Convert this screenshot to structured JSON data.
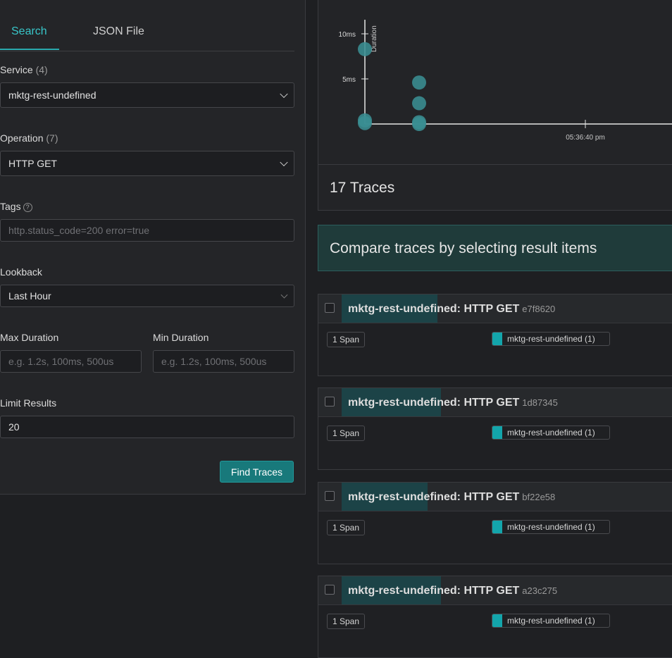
{
  "search_form": {
    "tabs": [
      {
        "label": "Search",
        "active": true
      },
      {
        "label": "JSON File",
        "active": false
      }
    ],
    "service": {
      "label": "Service",
      "count": "(4)",
      "value": "mktg-rest-undefined"
    },
    "operation": {
      "label": "Operation",
      "count": "(7)",
      "value": "HTTP GET"
    },
    "tags": {
      "label": "Tags",
      "help": "?",
      "placeholder": "http.status_code=200 error=true"
    },
    "lookback": {
      "label": "Lookback",
      "value": "Last Hour"
    },
    "max_duration": {
      "label": "Max Duration",
      "placeholder": "e.g. 1.2s, 100ms, 500us"
    },
    "min_duration": {
      "label": "Min Duration",
      "placeholder": "e.g. 1.2s, 100ms, 500us"
    },
    "limit": {
      "label": "Limit Results",
      "value": "20"
    },
    "find_button": "Find Traces"
  },
  "chart_data": {
    "type": "scatter",
    "ylabel": "Duration",
    "y_ticks": [
      {
        "label": "10ms",
        "value": 10
      },
      {
        "label": "5ms",
        "value": 5
      }
    ],
    "x_ticks": [
      {
        "label": "05:36:40 pm"
      }
    ],
    "point_color": "#3a8e93",
    "points": [
      {
        "x": "05:36:34 pm",
        "y": 8.3
      },
      {
        "x": "05:36:34 pm",
        "y": 0.4
      },
      {
        "x": "05:36:34 pm",
        "y": 0.1
      },
      {
        "x": "05:36:35 pm",
        "y": 4.6
      },
      {
        "x": "05:36:35 pm",
        "y": 2.3
      },
      {
        "x": "05:36:35 pm",
        "y": 0.2
      },
      {
        "x": "05:36:35 pm",
        "y": 0.0
      }
    ]
  },
  "results": {
    "count_text": "17 Traces",
    "compare_text": "Compare traces by selecting result items",
    "traces": [
      {
        "title": "mktg-rest-undefined: HTTP GET",
        "id": "e7f8620",
        "spans": "1 Span",
        "service": "mktg-rest-undefined (1)",
        "duration_fraction": 0.29
      },
      {
        "title": "mktg-rest-undefined: HTTP GET",
        "id": "1d87345",
        "spans": "1 Span",
        "service": "mktg-rest-undefined (1)",
        "duration_fraction": 0.3
      },
      {
        "title": "mktg-rest-undefined: HTTP GET",
        "id": "bf22e58",
        "spans": "1 Span",
        "service": "mktg-rest-undefined (1)",
        "duration_fraction": 0.26
      },
      {
        "title": "mktg-rest-undefined: HTTP GET",
        "id": "a23c275",
        "spans": "1 Span",
        "service": "mktg-rest-undefined (1)",
        "duration_fraction": 0.3
      }
    ]
  },
  "colors": {
    "accent": "#38c6c9",
    "primary_button": "#18797b",
    "service_swatch": "#13a5ab"
  }
}
